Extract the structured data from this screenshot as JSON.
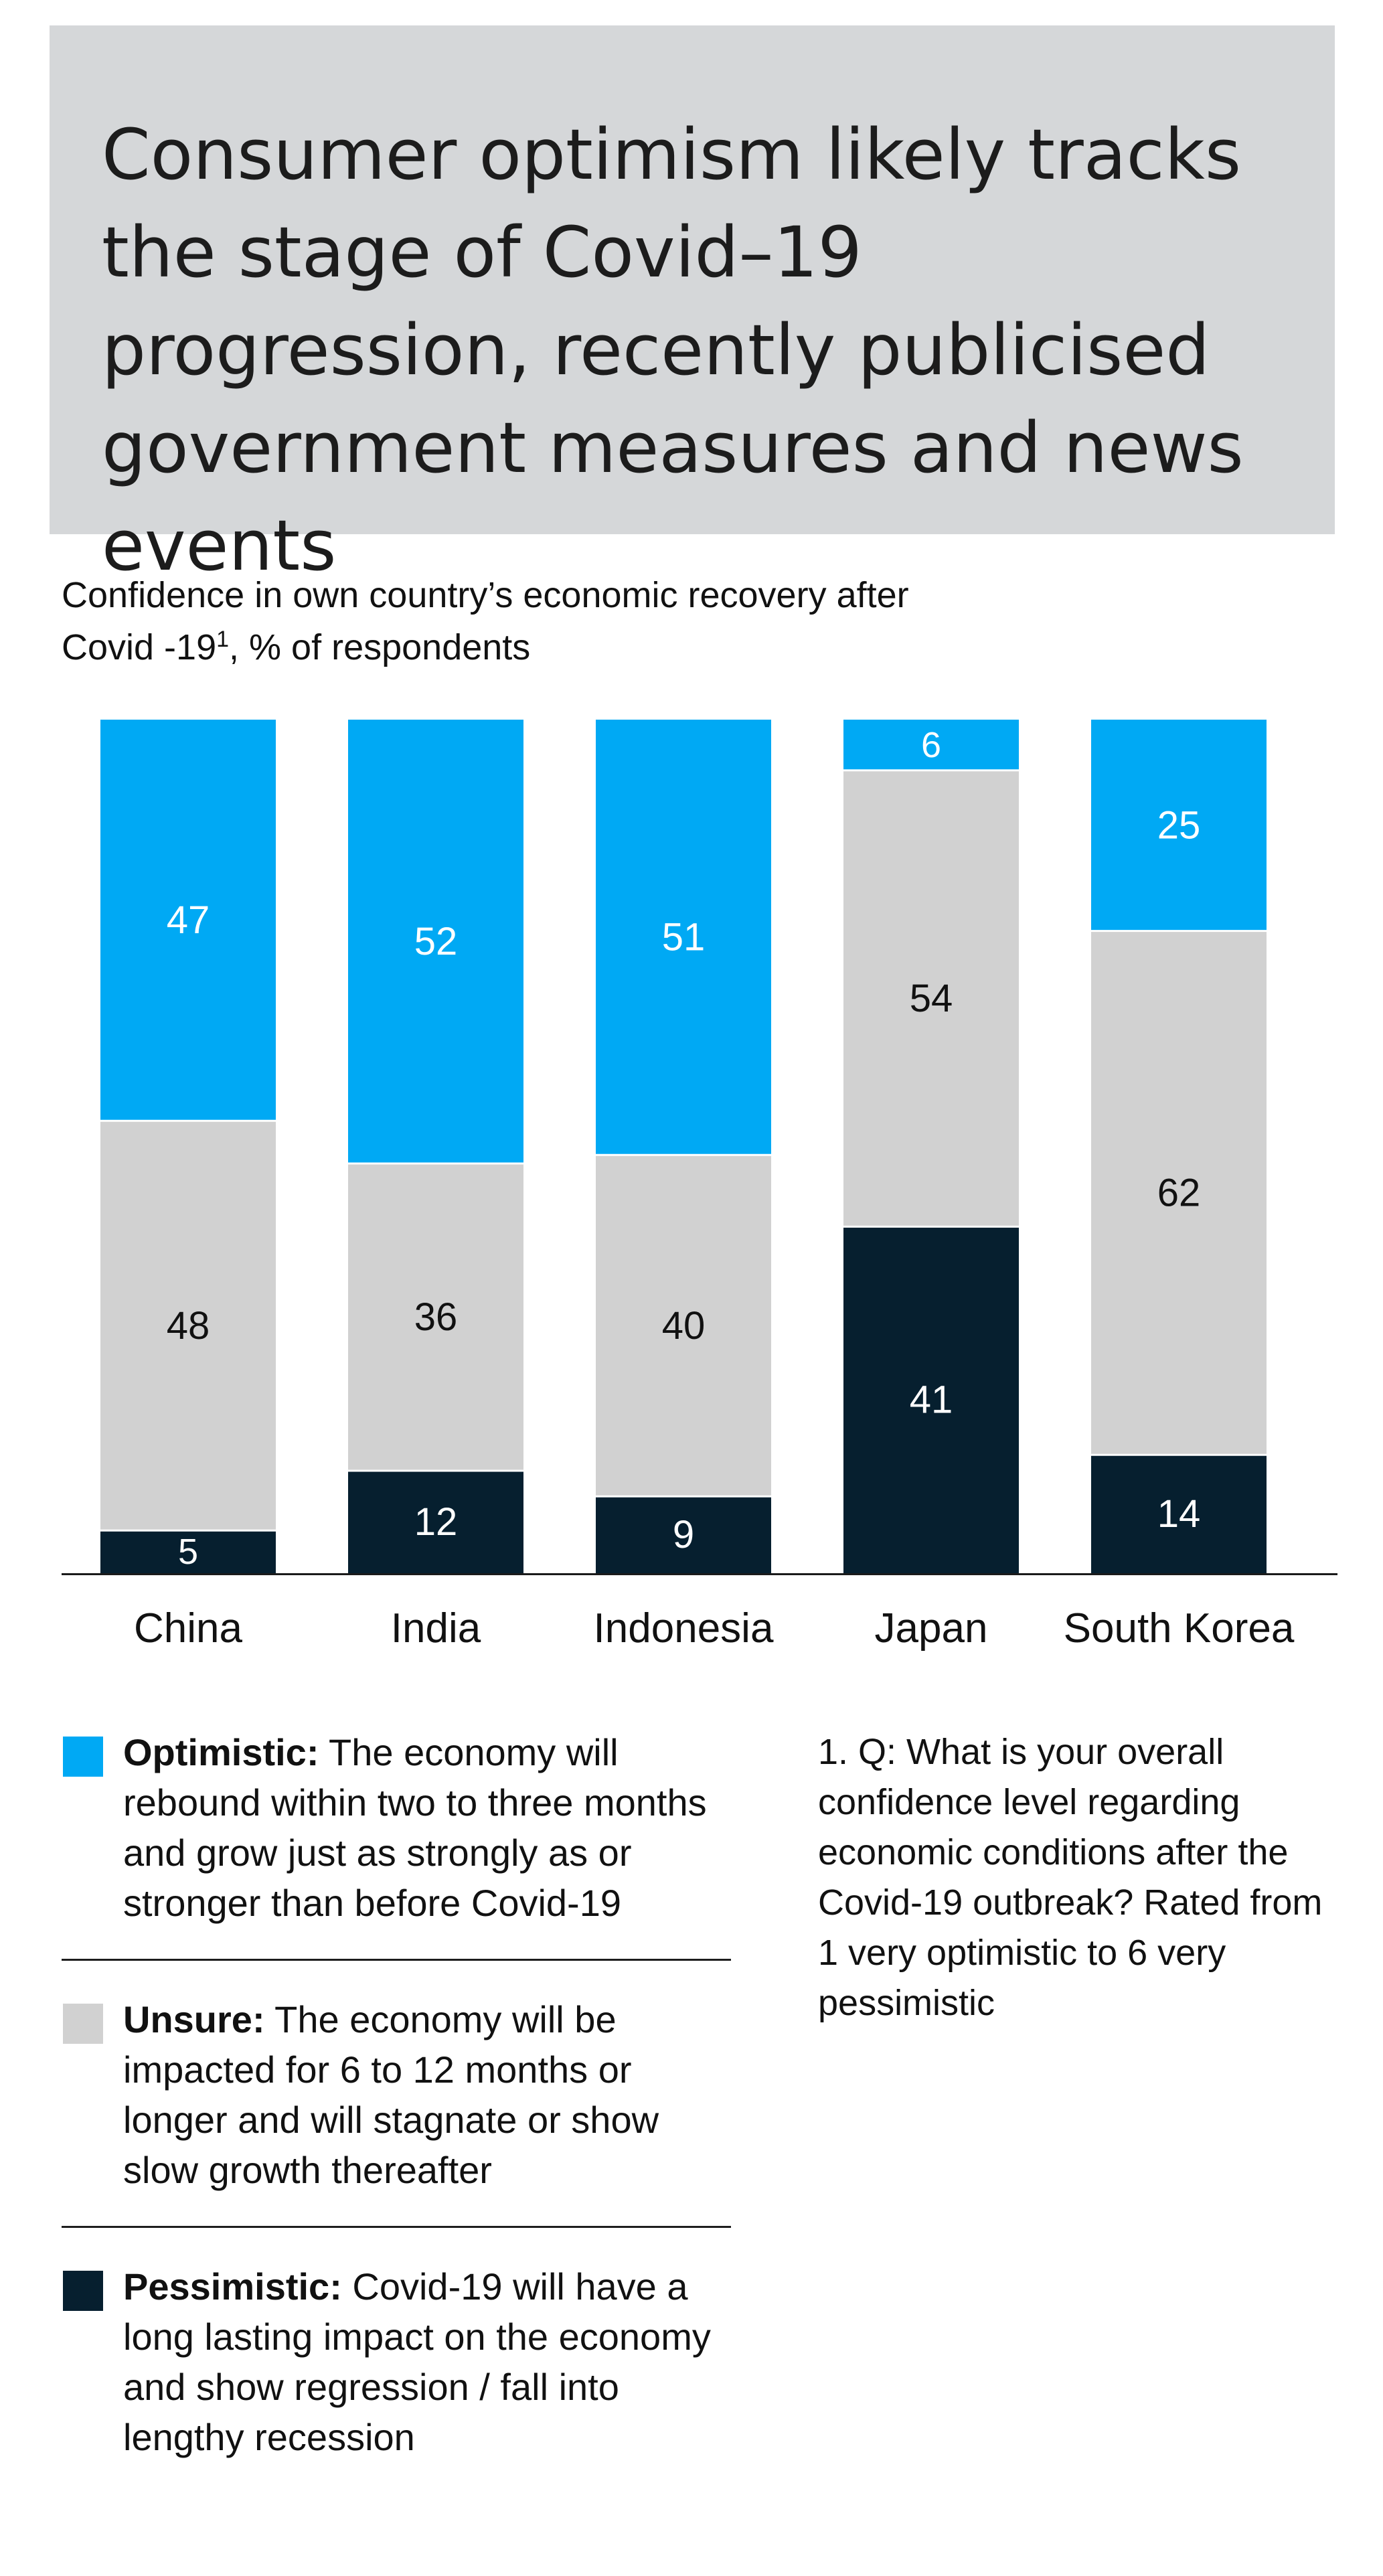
{
  "headline": "Consumer optimism likely tracks the stage of Covid–19 progression, recently publicised government measures and news events",
  "subtitle": {
    "line1": "Confidence in own country’s economic recovery after",
    "line2_prefix": "Covid -19",
    "footnote_marker": "1",
    "line2_suffix": ", % of respondents"
  },
  "colors": {
    "optimistic": "#00a9f4",
    "unsure": "#d1d1d1",
    "pessimistic": "#061f2f",
    "header_bg": "#d5d7d9"
  },
  "chart_data": {
    "type": "bar",
    "stacked": true,
    "normalized_to_100": true,
    "categories": [
      "China",
      "India",
      "Indonesia",
      "Japan",
      "South Korea"
    ],
    "series": [
      {
        "name": "Pessimistic",
        "color": "#061f2f",
        "label_color": "#ffffff",
        "values": [
          5,
          12,
          9,
          41,
          14
        ]
      },
      {
        "name": "Unsure",
        "color": "#d1d1d1",
        "label_color": "#111111",
        "values": [
          48,
          36,
          40,
          54,
          62
        ]
      },
      {
        "name": "Optimistic",
        "color": "#00a9f4",
        "label_color": "#ffffff",
        "values": [
          47,
          52,
          51,
          6,
          25
        ]
      }
    ],
    "ylim": [
      0,
      100
    ],
    "xlabel": "",
    "ylabel": "",
    "grid": false,
    "legend": "below"
  },
  "legend": [
    {
      "key": "optimistic",
      "term": "Optimistic:",
      "text": " The economy will rebound within two to three months and grow just as strongly as or stronger than before Covid-19"
    },
    {
      "key": "unsure",
      "term": "Unsure:",
      "text": " The economy will be impacted for 6 to 12 months or longer and will stagnate or show slow growth thereafter"
    },
    {
      "key": "pessimistic",
      "term": "Pessimistic:",
      "text": " Covid-19 will have a long lasting impact on the economy and show regression / fall into lengthy recession"
    }
  ],
  "footnote": "1. Q: What is your overall confidence level regarding economic conditions after the Covid-19 outbreak? Rated from 1 very optimistic to 6 very pessimistic"
}
